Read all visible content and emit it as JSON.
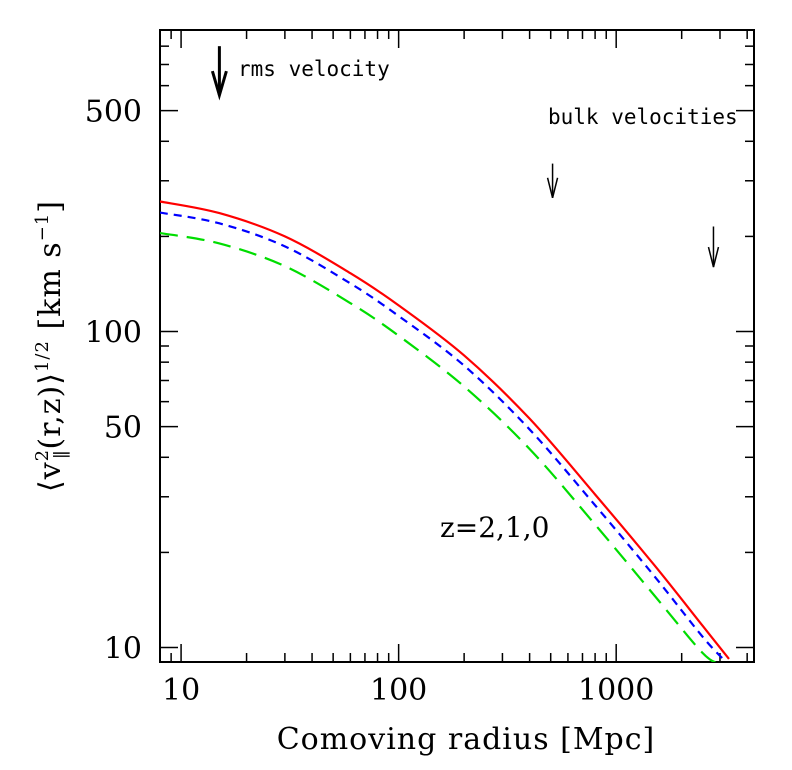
{
  "chart_data": {
    "type": "line",
    "xlabel": "Comoving radius [Mpc]",
    "ylabel": "⟨v∥²(r,z)⟩^1/2 [km s⁻¹]",
    "ylabel_parts": {
      "open": "⟨v",
      "sup": "2",
      "sub": "∥",
      "mid": "(r,z)⟩",
      "exp": "1/2",
      "unit_start": " [km s",
      "unit_exp": "−1",
      "unit_end": "]"
    },
    "x_scale": "log",
    "y_scale": "log",
    "xlim": [
      8,
      4300
    ],
    "ylim": [
      9.0,
      900
    ],
    "x_ticklabels": [
      "10",
      "100",
      "1000"
    ],
    "y_ticklabels": [
      "10",
      "50",
      "100",
      "500"
    ],
    "x_major_ticks": [
      10,
      100,
      1000
    ],
    "y_major_ticks": [
      10,
      50,
      100,
      500
    ],
    "series": [
      {
        "color": "#ff0000",
        "dash": "solid",
        "x": [
          8,
          15,
          30,
          60,
          100,
          200,
          400,
          800,
          1500,
          2500,
          3300
        ],
        "y": [
          258,
          237,
          200,
          153,
          121,
          84,
          53,
          30.5,
          18.2,
          11.7,
          9.2
        ]
      },
      {
        "color": "#0000ff",
        "dash": "short",
        "x": [
          8,
          15,
          30,
          60,
          100,
          200,
          400,
          800,
          1500,
          2500,
          3200
        ],
        "y": [
          238,
          220,
          186,
          142,
          112,
          78,
          49,
          28.2,
          16.8,
          10.8,
          9.0
        ]
      },
      {
        "color": "#00dd00",
        "dash": "long",
        "x": [
          8,
          15,
          30,
          60,
          100,
          200,
          400,
          800,
          1500,
          2500,
          3000
        ],
        "y": [
          205,
          190,
          161,
          123,
          97,
          67,
          42.5,
          24.5,
          14.6,
          9.6,
          8.9
        ]
      }
    ],
    "annotations": {
      "rms_label": "rms velocity",
      "bulk_label": "bulk velocities",
      "z_label": "z=2,1,0"
    },
    "arrows": [
      {
        "x": 15,
        "y_top": 800,
        "y_bottom": 560,
        "weight": "bold"
      },
      {
        "x": 510,
        "y_top": 340,
        "y_bottom": 265,
        "weight": "thin"
      },
      {
        "x": 2800,
        "y_top": 215,
        "y_bottom": 160,
        "weight": "thin"
      }
    ],
    "grid": false,
    "legend": "none"
  }
}
